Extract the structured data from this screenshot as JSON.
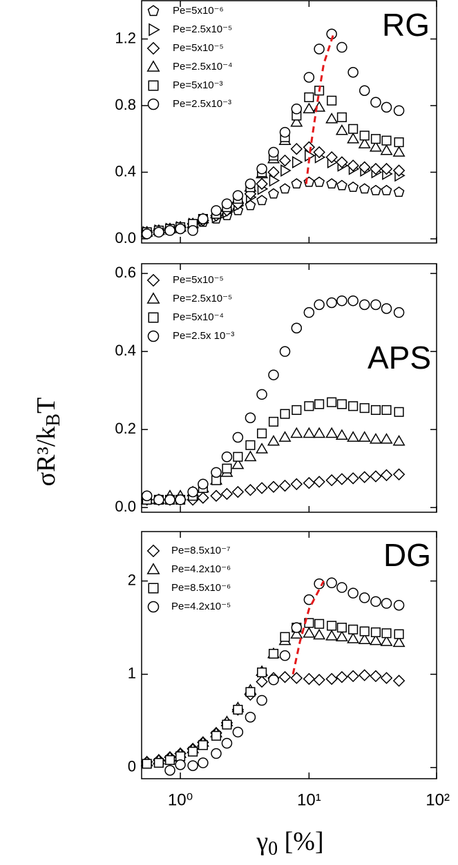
{
  "y_label": [
    "σR³/k",
    "B",
    "T"
  ],
  "x_label": [
    "γ",
    "0",
    " [%]"
  ],
  "chart_data": [
    {
      "type": "scatter",
      "title": "RG",
      "x_scale": "log",
      "xlim": [
        0.5,
        98
      ],
      "ylim": [
        -0.025,
        1.43
      ],
      "xticks": [
        1,
        10,
        100
      ],
      "xtick_labels": false,
      "yticks": [
        {
          "value": 0,
          "label": "0.0"
        },
        0.4,
        0.8,
        1.2
      ],
      "x": [
        0.55,
        0.68,
        0.83,
        1.0,
        1.25,
        1.5,
        1.9,
        2.3,
        2.8,
        3.5,
        4.3,
        5.3,
        6.5,
        8,
        10,
        12,
        15,
        18,
        22,
        27,
        33,
        40,
        50
      ],
      "series": [
        {
          "name": "Pe=5x10⁻⁶",
          "marker": "pentagon",
          "color": "#000000",
          "values": [
            0.04,
            0.05,
            0.06,
            0.07,
            0.08,
            0.1,
            0.12,
            0.14,
            0.17,
            0.2,
            0.23,
            0.27,
            0.3,
            0.33,
            0.34,
            0.34,
            0.33,
            0.32,
            0.31,
            0.3,
            0.29,
            0.29,
            0.28
          ]
        },
        {
          "name": "Pe=2.5x10⁻⁵",
          "marker": "triangle-right",
          "color": "#000000",
          "values": [
            0.04,
            0.05,
            0.06,
            0.07,
            0.09,
            0.11,
            0.13,
            0.16,
            0.2,
            0.25,
            0.3,
            0.35,
            0.41,
            0.46,
            0.5,
            0.49,
            0.46,
            0.44,
            0.42,
            0.41,
            0.4,
            0.39,
            0.38
          ]
        },
        {
          "name": "Pe=5x10⁻⁵",
          "marker": "diamond",
          "color": "#000000",
          "values": [
            0.04,
            0.05,
            0.06,
            0.07,
            0.09,
            0.11,
            0.14,
            0.17,
            0.21,
            0.27,
            0.33,
            0.4,
            0.47,
            0.54,
            0.55,
            0.52,
            0.49,
            0.46,
            0.44,
            0.43,
            0.42,
            0.42,
            0.41
          ]
        },
        {
          "name": "Pe=2.5x10⁻⁴",
          "marker": "triangle",
          "color": "#000000",
          "values": [
            0.04,
            0.05,
            0.06,
            0.07,
            0.09,
            0.12,
            0.15,
            0.19,
            0.24,
            0.31,
            0.39,
            0.48,
            0.59,
            0.7,
            0.78,
            0.79,
            0.72,
            0.65,
            0.6,
            0.57,
            0.55,
            0.53,
            0.52
          ]
        },
        {
          "name": "Pe=5x10⁻³",
          "marker": "square",
          "color": "#000000",
          "values": [
            0.04,
            0.05,
            0.06,
            0.07,
            0.09,
            0.12,
            0.15,
            0.19,
            0.24,
            0.31,
            0.4,
            0.5,
            0.61,
            0.74,
            0.85,
            0.89,
            0.83,
            0.73,
            0.66,
            0.62,
            0.6,
            0.59,
            0.58
          ]
        },
        {
          "name": "Pe=2.5x10⁻³",
          "marker": "circle",
          "color": "#000000",
          "values": [
            0.03,
            0.04,
            0.05,
            0.06,
            0.05,
            0.12,
            0.17,
            0.21,
            0.26,
            0.33,
            0.42,
            0.52,
            0.64,
            0.78,
            0.97,
            1.14,
            1.23,
            1.15,
            1.0,
            0.89,
            0.82,
            0.79,
            0.77
          ]
        }
      ],
      "guide": {
        "color": "#e41a1c",
        "x": [
          9.5,
          10.3,
          11.5,
          13,
          15.5
        ],
        "values": [
          0.33,
          0.55,
          0.8,
          1.05,
          1.23
        ]
      }
    },
    {
      "type": "scatter",
      "title": "APS",
      "x_scale": "log",
      "xlim": [
        0.5,
        98
      ],
      "ylim": [
        -0.012,
        0.625
      ],
      "xticks": [
        1,
        10,
        100
      ],
      "xtick_labels": false,
      "yticks": [
        {
          "value": 0,
          "label": "0.0"
        },
        0.2,
        0.4,
        0.6
      ],
      "x": [
        0.55,
        0.68,
        0.83,
        1.0,
        1.25,
        1.5,
        1.9,
        2.3,
        2.8,
        3.5,
        4.3,
        5.3,
        6.5,
        8,
        10,
        12,
        15,
        18,
        22,
        27,
        33,
        40,
        50
      ],
      "series": [
        {
          "name": "Pe=5x10⁻⁵",
          "marker": "diamond",
          "color": "#000000",
          "values": [
            0.02,
            0.02,
            0.02,
            0.02,
            0.02,
            0.025,
            0.03,
            0.035,
            0.04,
            0.045,
            0.05,
            0.053,
            0.056,
            0.06,
            0.063,
            0.066,
            0.07,
            0.073,
            0.075,
            0.078,
            0.08,
            0.083,
            0.085
          ]
        },
        {
          "name": "Pe=2.5x10⁻⁵",
          "marker": "triangle",
          "color": "#000000",
          "values": [
            0.02,
            0.02,
            0.03,
            0.03,
            0.04,
            0.05,
            0.07,
            0.09,
            0.11,
            0.13,
            0.15,
            0.17,
            0.18,
            0.19,
            0.19,
            0.19,
            0.19,
            0.185,
            0.18,
            0.18,
            0.175,
            0.175,
            0.17
          ]
        },
        {
          "name": "Pe=5x10⁻⁴",
          "marker": "square",
          "color": "#000000",
          "values": [
            0.02,
            0.02,
            0.02,
            0.02,
            0.03,
            0.05,
            0.07,
            0.1,
            0.13,
            0.16,
            0.19,
            0.22,
            0.24,
            0.25,
            0.26,
            0.265,
            0.27,
            0.265,
            0.26,
            0.255,
            0.25,
            0.25,
            0.245
          ]
        },
        {
          "name": "Pe=2.5x 10⁻³",
          "marker": "circle",
          "color": "#000000",
          "values": [
            0.03,
            0.02,
            0.02,
            0.02,
            0.04,
            0.06,
            0.09,
            0.13,
            0.18,
            0.23,
            0.29,
            0.34,
            0.4,
            0.46,
            0.5,
            0.52,
            0.525,
            0.53,
            0.53,
            0.52,
            0.52,
            0.51,
            0.5
          ]
        }
      ]
    },
    {
      "type": "scatter",
      "title": "DG",
      "x_scale": "log",
      "xlim": [
        0.5,
        98
      ],
      "ylim": [
        -0.12,
        2.53
      ],
      "xticks": [
        {
          "value": 1,
          "label": "10⁰"
        },
        {
          "value": 10,
          "label": "10¹"
        },
        {
          "value": 100,
          "label": "10²"
        }
      ],
      "xtick_labels": true,
      "yticks": [
        0,
        1,
        2
      ],
      "x": [
        0.55,
        0.68,
        0.83,
        1.0,
        1.25,
        1.5,
        1.9,
        2.3,
        2.8,
        3.5,
        4.3,
        5.3,
        6.5,
        8,
        10,
        12,
        15,
        18,
        22,
        27,
        33,
        40,
        50
      ],
      "series": [
        {
          "name": "Pe=8.5x10⁻⁷",
          "marker": "diamond",
          "color": "#000000",
          "values": [
            0.06,
            0.08,
            0.11,
            0.15,
            0.2,
            0.27,
            0.37,
            0.48,
            0.62,
            0.78,
            0.92,
            0.96,
            0.97,
            0.96,
            0.95,
            0.94,
            0.95,
            0.97,
            0.98,
            0.99,
            0.98,
            0.96,
            0.93
          ]
        },
        {
          "name": "Pe=4.2x10⁻⁶",
          "marker": "triangle",
          "color": "#000000",
          "values": [
            0.06,
            0.08,
            0.11,
            0.15,
            0.2,
            0.27,
            0.37,
            0.49,
            0.64,
            0.83,
            1.03,
            1.22,
            1.36,
            1.43,
            1.44,
            1.42,
            1.41,
            1.4,
            1.38,
            1.37,
            1.36,
            1.35,
            1.34
          ]
        },
        {
          "name": "Pe=8.5x10⁻⁶",
          "marker": "square",
          "color": "#000000",
          "values": [
            0.04,
            0.05,
            0.08,
            0.12,
            0.17,
            0.24,
            0.34,
            0.46,
            0.62,
            0.81,
            1.02,
            1.22,
            1.4,
            1.5,
            1.55,
            1.54,
            1.52,
            1.5,
            1.48,
            1.46,
            1.45,
            1.44,
            1.43
          ]
        },
        {
          "name": "Pe=4.2x10⁻⁵",
          "marker": "circle",
          "color": "#000000",
          "values": [
            null,
            null,
            -0.03,
            0.03,
            0.02,
            0.05,
            0.15,
            0.26,
            0.38,
            0.54,
            0.72,
            0.94,
            1.2,
            1.5,
            1.8,
            1.97,
            1.98,
            1.93,
            1.87,
            1.82,
            1.78,
            1.76,
            1.74
          ]
        }
      ],
      "guide": {
        "color": "#e41a1c",
        "x": [
          7.5,
          8.5,
          10,
          13
        ],
        "values": [
          1.0,
          1.35,
          1.7,
          2.0
        ]
      }
    }
  ]
}
